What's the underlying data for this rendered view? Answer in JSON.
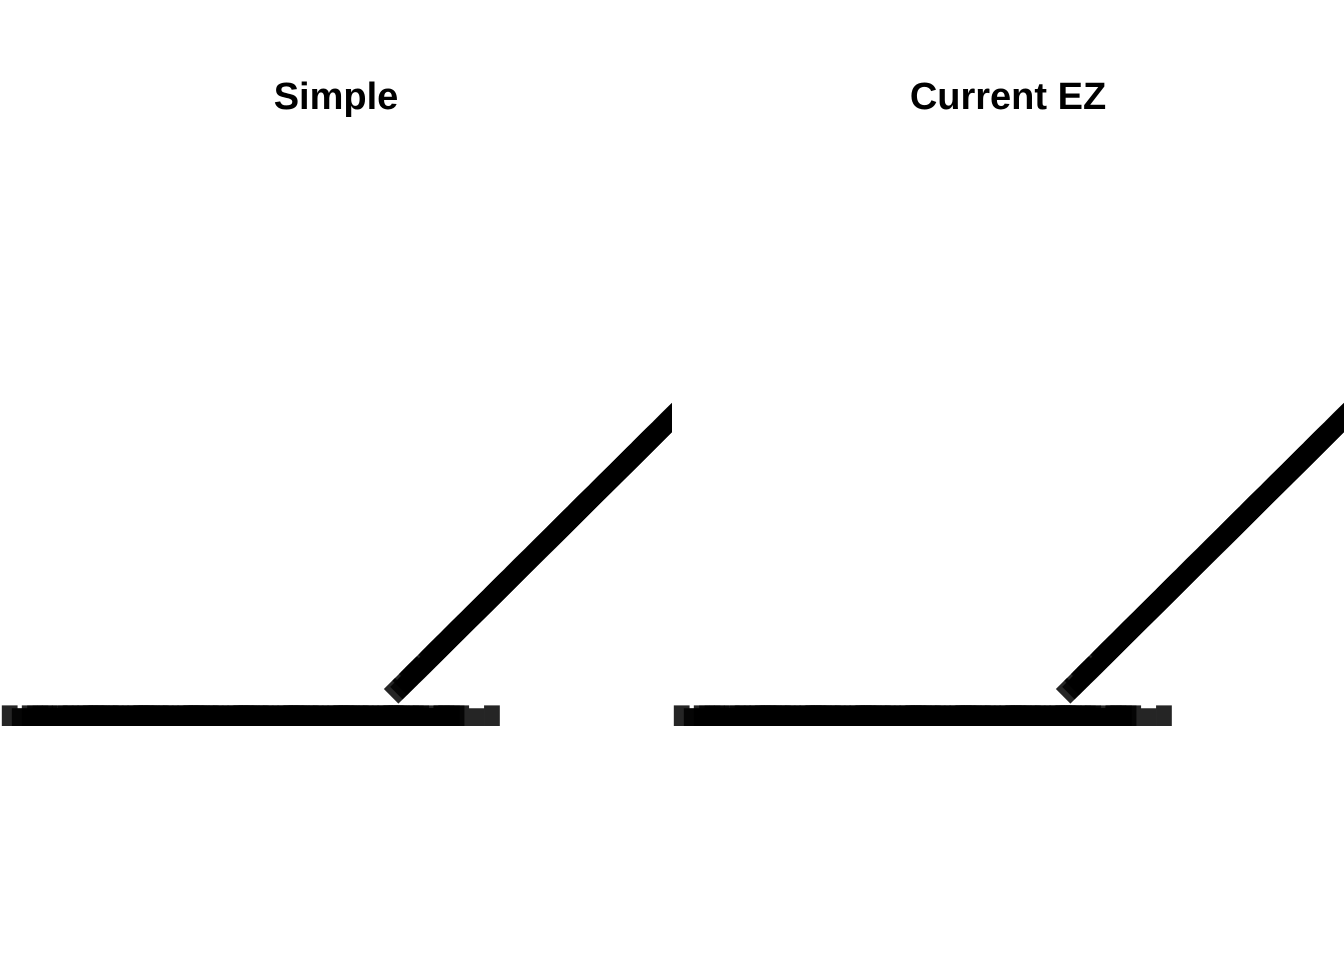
{
  "chart_data": [
    {
      "type": "other",
      "title": "Simple",
      "description_visible": "dense overlapping rotated text labels forming a horizontal band then a diagonal band; individual label strings are illegible",
      "grid": false,
      "legend": "none"
    },
    {
      "type": "other",
      "title": "Current EZ",
      "description_visible": "dense overlapping rotated text labels forming a horizontal band then a diagonal band; individual label strings are illegible",
      "grid": false,
      "legend": "none"
    }
  ],
  "colors": {
    "text": "#000000",
    "background": "#ffffff"
  }
}
